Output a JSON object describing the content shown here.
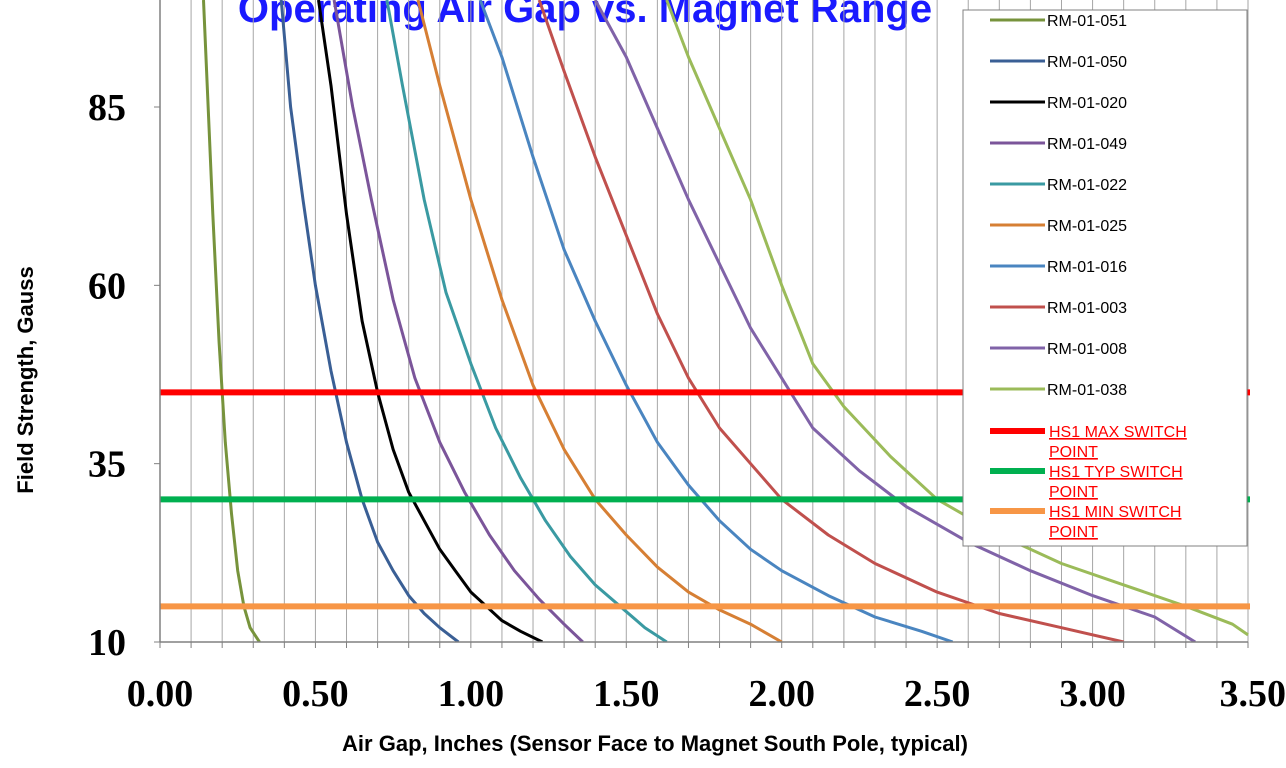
{
  "chart_data": {
    "type": "line",
    "title": "Operating Air Gap vs. Magnet Range",
    "title_color": "#1a1aff",
    "xlabel": "Air Gap, Inches (Sensor Face to Magnet South Pole, typical)",
    "ylabel": "Field Strength, Gauss",
    "xlim": [
      0,
      3.5
    ],
    "ylim": [
      10,
      100
    ],
    "x_ticks": [
      "0.00",
      "0.50",
      "1.00",
      "1.50",
      "2.00",
      "2.50",
      "3.00",
      "3.50"
    ],
    "y_ticks": [
      "10",
      "35",
      "60",
      "85"
    ],
    "grid": "vertical",
    "legend_position": "top-right",
    "series": [
      {
        "name": "RM-01-051",
        "color": "#77933c",
        "points": [
          [
            0.14,
            100
          ],
          [
            0.15,
            90
          ],
          [
            0.17,
            70
          ],
          [
            0.19,
            52
          ],
          [
            0.21,
            38
          ],
          [
            0.23,
            28
          ],
          [
            0.25,
            20
          ],
          [
            0.27,
            15
          ],
          [
            0.29,
            12
          ],
          [
            0.32,
            10
          ]
        ]
      },
      {
        "name": "RM-01-050",
        "color": "#3a5f95",
        "points": [
          [
            0.39,
            100
          ],
          [
            0.42,
            85
          ],
          [
            0.46,
            72
          ],
          [
            0.5,
            60
          ],
          [
            0.55,
            48
          ],
          [
            0.6,
            38
          ],
          [
            0.65,
            30
          ],
          [
            0.7,
            24
          ],
          [
            0.75,
            20
          ],
          [
            0.8,
            16.5
          ],
          [
            0.85,
            14
          ],
          [
            0.9,
            12
          ],
          [
            0.96,
            10
          ]
        ]
      },
      {
        "name": "RM-01-020",
        "color": "#000000",
        "points": [
          [
            0.51,
            100
          ],
          [
            0.55,
            88
          ],
          [
            0.6,
            70
          ],
          [
            0.65,
            55
          ],
          [
            0.7,
            45
          ],
          [
            0.75,
            37
          ],
          [
            0.8,
            31
          ],
          [
            0.85,
            27
          ],
          [
            0.9,
            23
          ],
          [
            0.95,
            20
          ],
          [
            1.0,
            17
          ],
          [
            1.05,
            15
          ],
          [
            1.1,
            13
          ],
          [
            1.16,
            11.5
          ],
          [
            1.23,
            10
          ]
        ]
      },
      {
        "name": "RM-01-049",
        "color": "#7b559a",
        "points": [
          [
            0.56,
            100
          ],
          [
            0.62,
            85
          ],
          [
            0.68,
            72
          ],
          [
            0.75,
            58
          ],
          [
            0.82,
            47
          ],
          [
            0.9,
            38
          ],
          [
            0.98,
            31
          ],
          [
            1.06,
            25
          ],
          [
            1.14,
            20
          ],
          [
            1.22,
            16
          ],
          [
            1.3,
            12.5
          ],
          [
            1.36,
            10
          ]
        ]
      },
      {
        "name": "RM-01-022",
        "color": "#3a9aa2",
        "points": [
          [
            0.73,
            100
          ],
          [
            0.78,
            88
          ],
          [
            0.85,
            72
          ],
          [
            0.92,
            59
          ],
          [
            1.0,
            49
          ],
          [
            1.08,
            40
          ],
          [
            1.16,
            33
          ],
          [
            1.24,
            27
          ],
          [
            1.32,
            22
          ],
          [
            1.4,
            18
          ],
          [
            1.48,
            15
          ],
          [
            1.56,
            12
          ],
          [
            1.63,
            10
          ]
        ]
      },
      {
        "name": "RM-01-025",
        "color": "#d67f34",
        "points": [
          [
            0.83,
            100
          ],
          [
            0.9,
            88
          ],
          [
            1.0,
            72
          ],
          [
            1.1,
            58
          ],
          [
            1.2,
            46
          ],
          [
            1.3,
            37
          ],
          [
            1.4,
            30
          ],
          [
            1.5,
            25
          ],
          [
            1.6,
            20.5
          ],
          [
            1.7,
            17
          ],
          [
            1.8,
            14.5
          ],
          [
            1.9,
            12.5
          ],
          [
            2.0,
            10
          ]
        ]
      },
      {
        "name": "RM-01-016",
        "color": "#4a85c0",
        "points": [
          [
            1.03,
            100
          ],
          [
            1.1,
            92
          ],
          [
            1.2,
            78
          ],
          [
            1.3,
            65
          ],
          [
            1.4,
            55
          ],
          [
            1.5,
            46
          ],
          [
            1.6,
            38
          ],
          [
            1.7,
            32
          ],
          [
            1.8,
            27
          ],
          [
            1.9,
            23
          ],
          [
            2.0,
            20
          ],
          [
            2.15,
            16.5
          ],
          [
            2.3,
            13.5
          ],
          [
            2.45,
            11.5
          ],
          [
            2.55,
            10
          ]
        ]
      },
      {
        "name": "RM-01-003",
        "color": "#c0504d",
        "points": [
          [
            1.22,
            100
          ],
          [
            1.3,
            90
          ],
          [
            1.4,
            78
          ],
          [
            1.5,
            67
          ],
          [
            1.6,
            56
          ],
          [
            1.7,
            47
          ],
          [
            1.8,
            40
          ],
          [
            1.9,
            35
          ],
          [
            2.0,
            30
          ],
          [
            2.15,
            25
          ],
          [
            2.3,
            21
          ],
          [
            2.5,
            17
          ],
          [
            2.7,
            14
          ],
          [
            2.9,
            12
          ],
          [
            3.1,
            10
          ]
        ]
      },
      {
        "name": "RM-01-008",
        "color": "#8063a8",
        "points": [
          [
            1.4,
            100
          ],
          [
            1.5,
            92
          ],
          [
            1.6,
            82
          ],
          [
            1.7,
            72
          ],
          [
            1.8,
            63
          ],
          [
            1.9,
            54
          ],
          [
            2.0,
            47
          ],
          [
            2.1,
            40
          ],
          [
            2.25,
            34
          ],
          [
            2.4,
            29
          ],
          [
            2.6,
            24
          ],
          [
            2.8,
            20
          ],
          [
            3.0,
            16.5
          ],
          [
            3.2,
            13.5
          ],
          [
            3.33,
            10
          ]
        ]
      },
      {
        "name": "RM-01-038",
        "color": "#9bbb59",
        "points": [
          [
            1.63,
            100
          ],
          [
            1.7,
            92
          ],
          [
            1.8,
            82
          ],
          [
            1.9,
            72
          ],
          [
            2.0,
            60
          ],
          [
            2.1,
            49
          ],
          [
            2.2,
            43
          ],
          [
            2.35,
            36
          ],
          [
            2.5,
            30
          ],
          [
            2.7,
            25
          ],
          [
            2.9,
            21
          ],
          [
            3.1,
            18
          ],
          [
            3.3,
            15
          ],
          [
            3.45,
            12.5
          ],
          [
            3.5,
            11
          ]
        ]
      }
    ],
    "reference_lines": [
      {
        "name": "HS1 MAX SWITCH POINT",
        "value": 45,
        "color": "#ff0000"
      },
      {
        "name": "HS1 TYP SWITCH POINT",
        "value": 30,
        "color": "#00b050"
      },
      {
        "name": "HS1 MIN SWITCH POINT",
        "value": 15,
        "color": "#f79646"
      }
    ]
  }
}
